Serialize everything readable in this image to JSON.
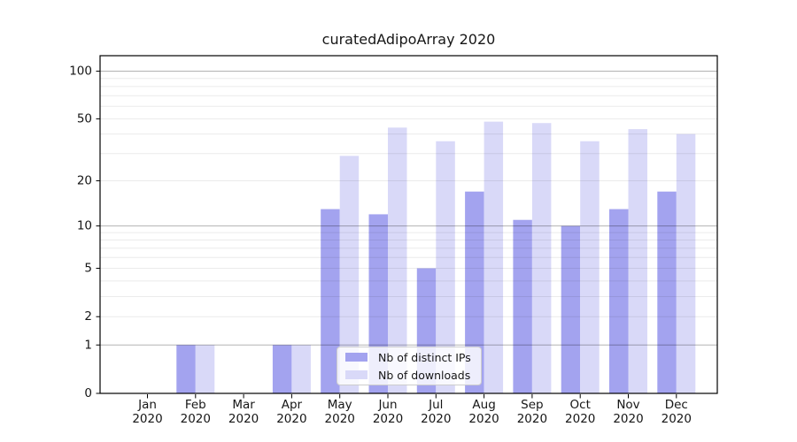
{
  "chart_data": {
    "type": "bar",
    "title": "curatedAdipoArray 2020",
    "categories": [
      "Jan 2020",
      "Feb 2020",
      "Mar 2020",
      "Apr 2020",
      "May 2020",
      "Jun 2020",
      "Jul 2020",
      "Aug 2020",
      "Sep 2020",
      "Oct 2020",
      "Nov 2020",
      "Dec 2020"
    ],
    "series": [
      {
        "name": "Nb of distinct IPs",
        "color": "#a3a3ef",
        "values": [
          0,
          1,
          0,
          1,
          13,
          12,
          5,
          17,
          11,
          10,
          13,
          17
        ]
      },
      {
        "name": "Nb of downloads",
        "color": "#d9d9f8",
        "values": [
          0,
          1,
          0,
          1,
          29,
          44,
          36,
          48,
          47,
          36,
          43,
          40
        ]
      }
    ],
    "yscale": "log1p",
    "ylim": [
      0,
      125
    ],
    "yticks": [
      0,
      1,
      2,
      5,
      10,
      20,
      50,
      100
    ],
    "grid_major": [
      1,
      10,
      100
    ],
    "grid_minor": [
      2,
      3,
      4,
      5,
      6,
      7,
      8,
      9,
      20,
      30,
      40,
      50,
      60,
      70,
      80,
      90
    ],
    "legend_position": "lower center",
    "grid_on": true,
    "colors": {
      "background": "#ffffff",
      "axis": "#000000",
      "text": "#161616",
      "grid_major": "#b3b3b3",
      "grid_minor": "#ebebeb"
    }
  }
}
